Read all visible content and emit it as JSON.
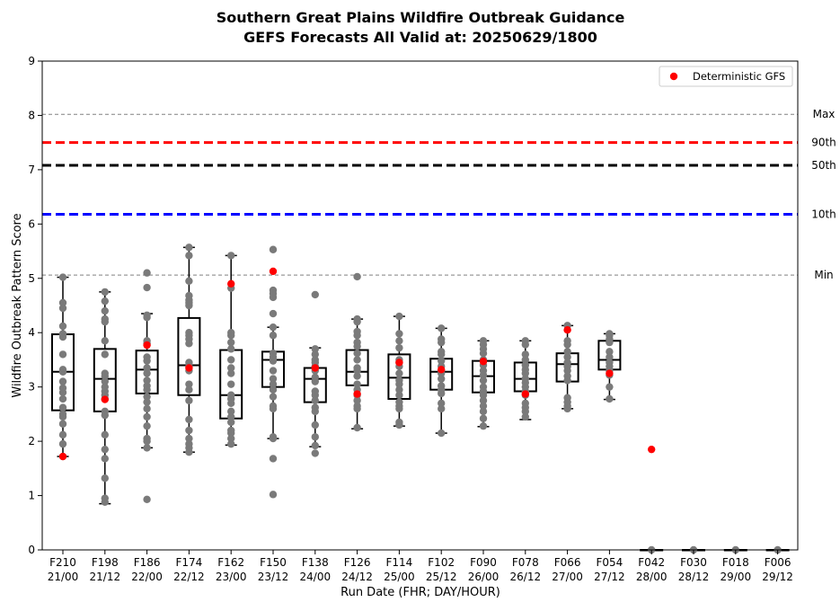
{
  "chart_data": {
    "type": "box",
    "title": "Southern Great Plains Wildfire Outbreak Guidance",
    "subtitle": "GEFS Forecasts All Valid at: 20250629/1800",
    "xlabel": "Run Date (FHR; DAY/HOUR)",
    "ylabel": "Wildfire Outbreak Pattern Score",
    "ylim": [
      0,
      9
    ],
    "yticks": [
      0,
      1,
      2,
      3,
      4,
      5,
      6,
      7,
      8,
      9
    ],
    "grid": false,
    "legend": {
      "position": "top-right",
      "entries": [
        {
          "label": "Deterministic GFS",
          "color": "#ff0000"
        }
      ]
    },
    "reference_lines": [
      {
        "label": "Max",
        "value": 8.02,
        "color": "#808080",
        "style": "dashed-thin"
      },
      {
        "label": "90th",
        "value": 7.5,
        "color": "#ff0000",
        "style": "dashed-thick"
      },
      {
        "label": "50th",
        "value": 7.08,
        "color": "#000000",
        "style": "dashed-thick"
      },
      {
        "label": "10th",
        "value": 6.18,
        "color": "#0000ff",
        "style": "dashed-thick"
      },
      {
        "label": "Min",
        "value": 5.06,
        "color": "#808080",
        "style": "dashed-thin"
      }
    ],
    "categories": [
      {
        "fhr": "F210",
        "dayhour": "21/00"
      },
      {
        "fhr": "F198",
        "dayhour": "21/12"
      },
      {
        "fhr": "F186",
        "dayhour": "22/00"
      },
      {
        "fhr": "F174",
        "dayhour": "22/12"
      },
      {
        "fhr": "F162",
        "dayhour": "23/00"
      },
      {
        "fhr": "F150",
        "dayhour": "23/12"
      },
      {
        "fhr": "F138",
        "dayhour": "24/00"
      },
      {
        "fhr": "F126",
        "dayhour": "24/12"
      },
      {
        "fhr": "F114",
        "dayhour": "25/00"
      },
      {
        "fhr": "F102",
        "dayhour": "25/12"
      },
      {
        "fhr": "F090",
        "dayhour": "26/00"
      },
      {
        "fhr": "F078",
        "dayhour": "26/12"
      },
      {
        "fhr": "F066",
        "dayhour": "27/00"
      },
      {
        "fhr": "F054",
        "dayhour": "27/12"
      },
      {
        "fhr": "F042",
        "dayhour": "28/00"
      },
      {
        "fhr": "F030",
        "dayhour": "28/12"
      },
      {
        "fhr": "F018",
        "dayhour": "29/00"
      },
      {
        "fhr": "F006",
        "dayhour": "29/12"
      }
    ],
    "boxes": [
      {
        "q1": 2.57,
        "median": 3.28,
        "q3": 3.97,
        "whisker_low": 1.72,
        "whisker_high": 5.02,
        "deterministic": 1.72,
        "members": [
          5.02,
          4.55,
          4.45,
          4.12,
          3.98,
          3.92,
          3.6,
          3.32,
          3.28,
          3.1,
          2.98,
          2.9,
          2.78,
          2.62,
          2.5,
          2.45,
          2.32,
          2.12,
          1.95,
          1.72
        ]
      },
      {
        "q1": 2.55,
        "median": 3.15,
        "q3": 3.7,
        "whisker_low": 0.85,
        "whisker_high": 4.75,
        "deterministic": 2.77,
        "members": [
          4.75,
          4.58,
          4.4,
          4.25,
          4.2,
          3.85,
          3.6,
          3.25,
          3.2,
          3.1,
          3.0,
          2.92,
          2.85,
          2.78,
          2.55,
          2.48,
          2.12,
          1.85,
          1.68,
          1.32,
          0.95,
          0.88
        ]
      },
      {
        "q1": 2.88,
        "median": 3.32,
        "q3": 3.67,
        "whisker_low": 1.88,
        "whisker_high": 4.35,
        "deterministic": 3.77,
        "members": [
          5.1,
          4.83,
          4.32,
          4.28,
          3.85,
          3.8,
          3.55,
          3.48,
          3.35,
          3.25,
          3.12,
          3.02,
          2.95,
          2.82,
          2.72,
          2.6,
          2.45,
          2.28,
          2.05,
          2.0,
          1.88,
          0.93
        ]
      },
      {
        "q1": 2.85,
        "median": 3.4,
        "q3": 4.27,
        "whisker_low": 1.8,
        "whisker_high": 5.57,
        "deterministic": 3.35,
        "members": [
          5.57,
          5.42,
          4.95,
          4.68,
          4.6,
          4.55,
          4.5,
          4.0,
          3.95,
          3.88,
          3.8,
          3.45,
          3.38,
          3.3,
          3.05,
          2.95,
          2.75,
          2.4,
          2.2,
          2.05,
          1.95,
          1.88,
          1.8
        ]
      },
      {
        "q1": 2.42,
        "median": 2.85,
        "q3": 3.68,
        "whisker_low": 1.93,
        "whisker_high": 5.42,
        "deterministic": 4.9,
        "members": [
          5.42,
          4.82,
          4.0,
          3.95,
          3.82,
          3.7,
          3.5,
          3.35,
          3.25,
          3.05,
          2.85,
          2.78,
          2.7,
          2.55,
          2.45,
          2.35,
          2.2,
          2.15,
          2.05,
          1.95
        ]
      },
      {
        "q1": 3.0,
        "median": 3.5,
        "q3": 3.65,
        "whisker_low": 2.05,
        "whisker_high": 4.1,
        "deterministic": 5.13,
        "members": [
          5.53,
          4.78,
          4.72,
          4.65,
          4.35,
          4.1,
          3.95,
          3.62,
          3.55,
          3.48,
          3.3,
          3.15,
          3.05,
          2.95,
          2.82,
          2.65,
          2.6,
          2.08,
          2.05,
          1.68,
          1.02
        ]
      },
      {
        "q1": 2.72,
        "median": 3.15,
        "q3": 3.35,
        "whisker_low": 1.9,
        "whisker_high": 3.72,
        "deterministic": 3.35,
        "members": [
          4.7,
          3.7,
          3.6,
          3.5,
          3.45,
          3.38,
          3.3,
          3.18,
          3.1,
          2.92,
          2.85,
          2.75,
          2.62,
          2.55,
          2.3,
          2.08,
          1.92,
          1.78
        ]
      },
      {
        "q1": 3.03,
        "median": 3.28,
        "q3": 3.68,
        "whisker_low": 2.23,
        "whisker_high": 4.25,
        "deterministic": 2.87,
        "members": [
          5.03,
          4.25,
          4.2,
          4.02,
          3.95,
          3.82,
          3.75,
          3.62,
          3.5,
          3.35,
          3.3,
          3.2,
          3.05,
          2.95,
          2.85,
          2.75,
          2.65,
          2.6,
          2.25
        ]
      },
      {
        "q1": 2.78,
        "median": 3.17,
        "q3": 3.6,
        "whisker_low": 2.28,
        "whisker_high": 4.3,
        "deterministic": 3.45,
        "members": [
          4.3,
          3.98,
          3.85,
          3.72,
          3.5,
          3.45,
          3.38,
          3.25,
          3.12,
          3.05,
          2.95,
          2.85,
          2.72,
          2.65,
          2.6,
          2.35,
          2.3
        ]
      },
      {
        "q1": 2.95,
        "median": 3.28,
        "q3": 3.52,
        "whisker_low": 2.15,
        "whisker_high": 4.08,
        "deterministic": 3.32,
        "members": [
          4.08,
          3.88,
          3.82,
          3.65,
          3.6,
          3.48,
          3.38,
          3.3,
          3.25,
          3.15,
          3.02,
          2.95,
          2.88,
          2.7,
          2.6,
          2.15
        ]
      },
      {
        "q1": 2.9,
        "median": 3.2,
        "q3": 3.48,
        "whisker_low": 2.27,
        "whisker_high": 3.85,
        "deterministic": 3.47,
        "members": [
          3.85,
          3.78,
          3.7,
          3.62,
          3.5,
          3.4,
          3.3,
          3.22,
          3.12,
          3.0,
          2.92,
          2.85,
          2.75,
          2.65,
          2.55,
          2.42,
          2.28
        ]
      },
      {
        "q1": 2.92,
        "median": 3.15,
        "q3": 3.45,
        "whisker_low": 2.4,
        "whisker_high": 3.85,
        "deterministic": 2.87,
        "members": [
          3.85,
          3.78,
          3.6,
          3.5,
          3.4,
          3.32,
          3.25,
          3.15,
          3.08,
          3.0,
          2.92,
          2.85,
          2.7,
          2.62,
          2.55,
          2.45
        ]
      },
      {
        "q1": 3.1,
        "median": 3.42,
        "q3": 3.62,
        "whisker_low": 2.6,
        "whisker_high": 4.13,
        "deterministic": 4.05,
        "members": [
          4.13,
          3.85,
          3.78,
          3.65,
          3.55,
          3.45,
          3.38,
          3.3,
          3.2,
          3.12,
          2.8,
          2.72,
          2.65,
          2.6
        ]
      },
      {
        "q1": 3.32,
        "median": 3.5,
        "q3": 3.85,
        "whisker_low": 2.77,
        "whisker_high": 3.98,
        "deterministic": 3.25,
        "members": [
          3.98,
          3.95,
          3.88,
          3.82,
          3.65,
          3.55,
          3.45,
          3.38,
          3.3,
          3.22,
          3.0,
          2.78
        ]
      },
      {
        "q1": 0,
        "median": 0,
        "q3": 0,
        "whisker_low": 0,
        "whisker_high": 0,
        "deterministic": 1.85,
        "members": [
          0
        ]
      },
      {
        "q1": 0,
        "median": 0,
        "q3": 0,
        "whisker_low": 0,
        "whisker_high": 0,
        "deterministic": null,
        "members": [
          0
        ]
      },
      {
        "q1": 0,
        "median": 0,
        "q3": 0,
        "whisker_low": 0,
        "whisker_high": 0,
        "deterministic": null,
        "members": [
          0
        ]
      },
      {
        "q1": 0,
        "median": 0,
        "q3": 0,
        "whisker_low": 0,
        "whisker_high": 0,
        "deterministic": null,
        "members": [
          0
        ]
      }
    ],
    "colors": {
      "members": "#7a7a7a",
      "deterministic": "#ff0000",
      "box": "#000000"
    }
  }
}
